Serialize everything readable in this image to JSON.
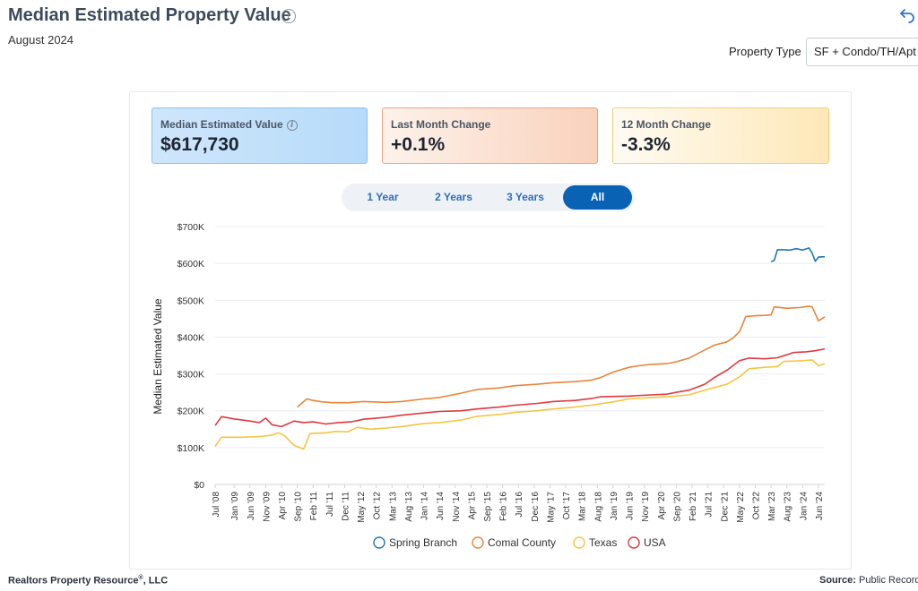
{
  "header": {
    "title": "Median Estimated Property Value",
    "subtitle": "August 2024",
    "property_type_label": "Property Type",
    "property_type_value": "SF + Condo/TH/Apt"
  },
  "cards": [
    {
      "label": "Median Estimated Value",
      "value": "$617,730"
    },
    {
      "label": "Last Month Change",
      "value": "+0.1%"
    },
    {
      "label": "12 Month Change",
      "value": "-3.3%"
    }
  ],
  "range_buttons": [
    {
      "label": "1 Year",
      "active": false
    },
    {
      "label": "2 Years",
      "active": false
    },
    {
      "label": "3 Years",
      "active": false
    },
    {
      "label": "All",
      "active": true
    }
  ],
  "footer": {
    "left": "Realtors Property Resource",
    "left_suffix": ", LLC",
    "right_label": "Source:",
    "right_value": "Public Records"
  },
  "colors": {
    "spring_branch": "#1f77b4",
    "comal_county": "#e8853a",
    "texas": "#f5c542",
    "usa": "#e0393e",
    "active_button": "#0a62b5"
  },
  "chart_data": {
    "type": "line",
    "title": "",
    "xlabel": "",
    "ylabel": "Median Estimated Value",
    "ylim": [
      0,
      700000
    ],
    "yticks": [
      0,
      100000,
      200000,
      300000,
      400000,
      500000,
      600000,
      700000
    ],
    "ytick_labels": [
      "$0",
      "$100K",
      "$200K",
      "$300K",
      "$400K",
      "$500K",
      "$600K",
      "$700K"
    ],
    "x_start": "2008-07",
    "x_end": "2024-08",
    "xtick_labels": [
      "Jul '08",
      "Jan '09",
      "Jun '09",
      "Nov '09",
      "Apr '10",
      "Sep '10",
      "Feb '11",
      "Jul '11",
      "Dec '11",
      "May '12",
      "Oct '12",
      "Mar '13",
      "Aug '13",
      "Jan '14",
      "Jun '14",
      "Nov '14",
      "Apr '15",
      "Sep '15",
      "Feb '16",
      "Jul '16",
      "Dec '16",
      "May '17",
      "Oct '17",
      "Mar '18",
      "Aug '18",
      "Jan '19",
      "Jun '19",
      "Nov '19",
      "Apr '20",
      "Sep '20",
      "Feb '21",
      "Jul '21",
      "Dec '21",
      "May '22",
      "Oct '22",
      "Mar '23",
      "Aug '23",
      "Jan '24",
      "Jun '24"
    ],
    "grid": true,
    "legend_position": "bottom",
    "series": [
      {
        "name": "Spring Branch",
        "color": "#1f77b4",
        "points": [
          [
            "2023-03",
            605000
          ],
          [
            "2023-04",
            608000
          ],
          [
            "2023-05",
            637000
          ],
          [
            "2023-07",
            637000
          ],
          [
            "2023-09",
            636000
          ],
          [
            "2023-11",
            640000
          ],
          [
            "2024-01",
            636000
          ],
          [
            "2024-03",
            642000
          ],
          [
            "2024-04",
            628000
          ],
          [
            "2024-05",
            606000
          ],
          [
            "2024-06",
            617000
          ],
          [
            "2024-08",
            618000
          ]
        ]
      },
      {
        "name": "Comal County",
        "color": "#e8853a",
        "points": [
          [
            "2010-09",
            210000
          ],
          [
            "2010-12",
            232000
          ],
          [
            "2011-02",
            228000
          ],
          [
            "2011-05",
            224000
          ],
          [
            "2011-08",
            222000
          ],
          [
            "2012-01",
            222000
          ],
          [
            "2012-06",
            225000
          ],
          [
            "2013-01",
            223000
          ],
          [
            "2013-06",
            225000
          ],
          [
            "2014-01",
            232000
          ],
          [
            "2014-06",
            236000
          ],
          [
            "2015-01",
            248000
          ],
          [
            "2015-06",
            258000
          ],
          [
            "2016-01",
            262000
          ],
          [
            "2016-06",
            268000
          ],
          [
            "2017-01",
            272000
          ],
          [
            "2017-06",
            276000
          ],
          [
            "2018-01",
            279000
          ],
          [
            "2018-06",
            283000
          ],
          [
            "2018-09",
            290000
          ],
          [
            "2019-01",
            305000
          ],
          [
            "2019-06",
            318000
          ],
          [
            "2019-09",
            322000
          ],
          [
            "2020-01",
            326000
          ],
          [
            "2020-06",
            328000
          ],
          [
            "2020-09",
            333000
          ],
          [
            "2021-01",
            343000
          ],
          [
            "2021-06",
            365000
          ],
          [
            "2021-09",
            378000
          ],
          [
            "2022-01",
            387000
          ],
          [
            "2022-03",
            398000
          ],
          [
            "2022-05",
            415000
          ],
          [
            "2022-07",
            456000
          ],
          [
            "2022-10",
            458000
          ],
          [
            "2023-01",
            459000
          ],
          [
            "2023-03",
            460000
          ],
          [
            "2023-04",
            482000
          ],
          [
            "2023-08",
            478000
          ],
          [
            "2023-12",
            480000
          ],
          [
            "2024-03",
            484000
          ],
          [
            "2024-04",
            482000
          ],
          [
            "2024-06",
            444000
          ],
          [
            "2024-08",
            455000
          ]
        ]
      },
      {
        "name": "Texas",
        "color": "#f5c542",
        "points": [
          [
            "2008-07",
            103000
          ],
          [
            "2008-09",
            128000
          ],
          [
            "2009-03",
            128000
          ],
          [
            "2009-09",
            130000
          ],
          [
            "2010-01",
            134000
          ],
          [
            "2010-03",
            140000
          ],
          [
            "2010-05",
            132000
          ],
          [
            "2010-08",
            106000
          ],
          [
            "2010-11",
            96000
          ],
          [
            "2011-01",
            138000
          ],
          [
            "2011-06",
            140000
          ],
          [
            "2011-09",
            144000
          ],
          [
            "2012-01",
            143000
          ],
          [
            "2012-04",
            155000
          ],
          [
            "2012-08",
            150000
          ],
          [
            "2013-01",
            153000
          ],
          [
            "2013-06",
            157000
          ],
          [
            "2014-01",
            165000
          ],
          [
            "2014-06",
            168000
          ],
          [
            "2015-01",
            175000
          ],
          [
            "2015-06",
            185000
          ],
          [
            "2016-01",
            190000
          ],
          [
            "2016-06",
            196000
          ],
          [
            "2017-01",
            200000
          ],
          [
            "2017-06",
            205000
          ],
          [
            "2018-01",
            210000
          ],
          [
            "2018-06",
            215000
          ],
          [
            "2019-01",
            224000
          ],
          [
            "2019-06",
            232000
          ],
          [
            "2020-01",
            236000
          ],
          [
            "2020-06",
            238000
          ],
          [
            "2021-01",
            243000
          ],
          [
            "2021-06",
            256000
          ],
          [
            "2022-01",
            272000
          ],
          [
            "2022-05",
            292000
          ],
          [
            "2022-08",
            314000
          ],
          [
            "2023-01",
            318000
          ],
          [
            "2023-05",
            320000
          ],
          [
            "2023-07",
            334000
          ],
          [
            "2024-01",
            336000
          ],
          [
            "2024-04",
            338000
          ],
          [
            "2024-06",
            322000
          ],
          [
            "2024-08",
            328000
          ]
        ]
      },
      {
        "name": "USA",
        "color": "#e0393e",
        "points": [
          [
            "2008-07",
            160000
          ],
          [
            "2008-09",
            184000
          ],
          [
            "2009-01",
            178000
          ],
          [
            "2009-06",
            172000
          ],
          [
            "2009-09",
            168000
          ],
          [
            "2009-11",
            180000
          ],
          [
            "2010-01",
            162000
          ],
          [
            "2010-04",
            157000
          ],
          [
            "2010-08",
            172000
          ],
          [
            "2010-11",
            168000
          ],
          [
            "2011-02",
            170000
          ],
          [
            "2011-06",
            164000
          ],
          [
            "2011-10",
            168000
          ],
          [
            "2012-02",
            170000
          ],
          [
            "2012-06",
            177000
          ],
          [
            "2013-01",
            182000
          ],
          [
            "2013-06",
            188000
          ],
          [
            "2014-01",
            194000
          ],
          [
            "2014-06",
            198000
          ],
          [
            "2015-01",
            200000
          ],
          [
            "2015-06",
            205000
          ],
          [
            "2016-01",
            210000
          ],
          [
            "2016-06",
            215000
          ],
          [
            "2017-01",
            220000
          ],
          [
            "2017-06",
            225000
          ],
          [
            "2018-01",
            228000
          ],
          [
            "2018-06",
            233000
          ],
          [
            "2018-09",
            238000
          ],
          [
            "2019-06",
            240000
          ],
          [
            "2020-01",
            243000
          ],
          [
            "2020-06",
            245000
          ],
          [
            "2020-09",
            250000
          ],
          [
            "2021-01",
            256000
          ],
          [
            "2021-06",
            272000
          ],
          [
            "2021-09",
            290000
          ],
          [
            "2022-01",
            310000
          ],
          [
            "2022-05",
            336000
          ],
          [
            "2022-08",
            343000
          ],
          [
            "2023-01",
            341000
          ],
          [
            "2023-05",
            344000
          ],
          [
            "2023-08",
            352000
          ],
          [
            "2023-10",
            358000
          ],
          [
            "2024-02",
            360000
          ],
          [
            "2024-05",
            363000
          ],
          [
            "2024-08",
            368000
          ]
        ]
      }
    ]
  }
}
